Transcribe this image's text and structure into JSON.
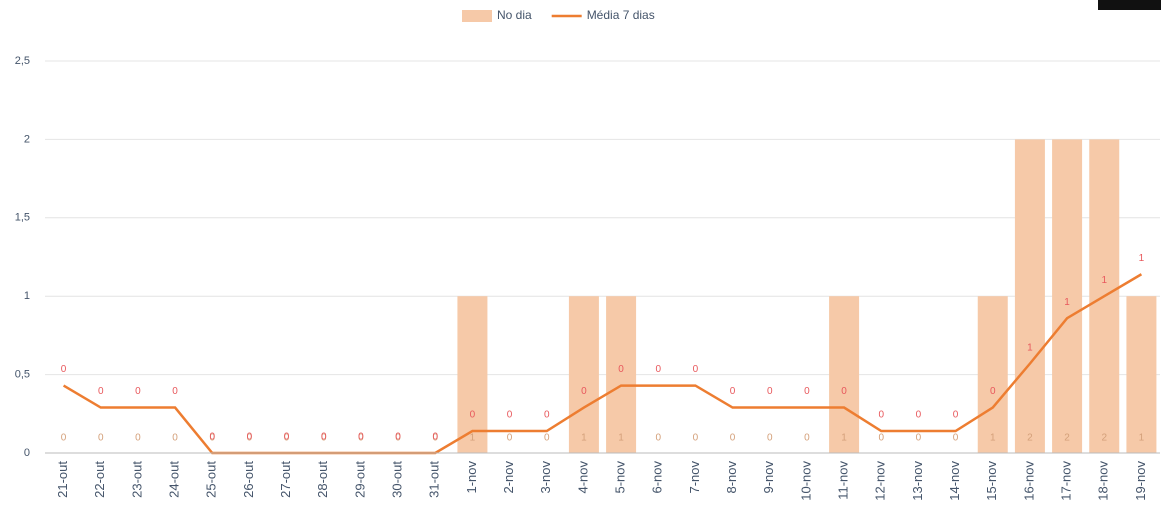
{
  "chart_data": {
    "type": "bar",
    "categories": [
      "21-out",
      "22-out",
      "23-out",
      "24-out",
      "25-out",
      "26-out",
      "27-out",
      "28-out",
      "29-out",
      "30-out",
      "31-out",
      "1-nov",
      "2-nov",
      "3-nov",
      "4-nov",
      "5-nov",
      "6-nov",
      "7-nov",
      "8-nov",
      "9-nov",
      "10-nov",
      "11-nov",
      "12-nov",
      "13-nov",
      "14-nov",
      "15-nov",
      "16-nov",
      "17-nov",
      "18-nov",
      "19-nov"
    ],
    "series": [
      {
        "name": "No dia",
        "type": "bar",
        "color": "#f6c9a8",
        "values": [
          0,
          0,
          0,
          0,
          0,
          0,
          0,
          0,
          0,
          0,
          0,
          1,
          0,
          0,
          1,
          1,
          0,
          0,
          0,
          0,
          0,
          1,
          0,
          0,
          0,
          1,
          2,
          2,
          2,
          1
        ]
      },
      {
        "name": "Média 7 dias",
        "type": "line",
        "color": "#ed7d31",
        "values": [
          0.43,
          0.29,
          0.29,
          0.29,
          0,
          0,
          0,
          0,
          0,
          0,
          0,
          0.14,
          0.14,
          0.14,
          0.29,
          0.43,
          0.43,
          0.43,
          0.29,
          0.29,
          0.29,
          0.29,
          0.14,
          0.14,
          0.14,
          0.29,
          0.57,
          0.86,
          1.0,
          1.14
        ],
        "value_labels": [
          "0",
          "0",
          "0",
          "0",
          "0",
          "0",
          "0",
          "0",
          "0",
          "0",
          "0",
          "0",
          "0",
          "0",
          "0",
          "0",
          "0",
          "0",
          "0",
          "0",
          "0",
          "0",
          "0",
          "0",
          "0",
          "0",
          "1",
          "1",
          "1",
          "1"
        ]
      }
    ],
    "ylim": [
      0,
      2.5
    ],
    "yticks": [
      0,
      {
        "value": 0.5,
        "label": "0,5"
      },
      1,
      {
        "value": 1.5,
        "label": "1,5"
      },
      2,
      {
        "value": 2.5,
        "label": "2,5"
      }
    ],
    "grid": true,
    "legend": "top"
  }
}
